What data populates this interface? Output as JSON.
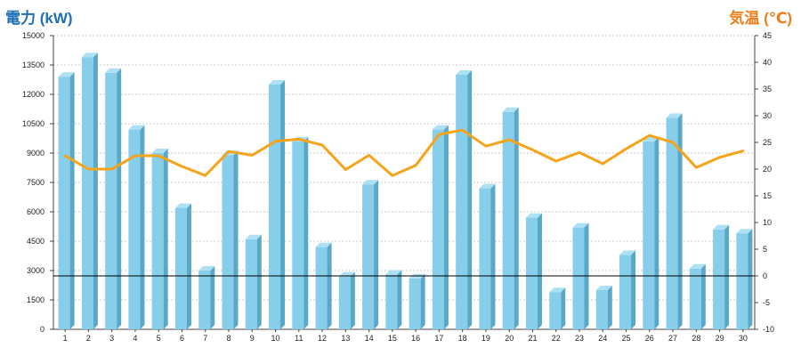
{
  "chart_data": {
    "type": "bar+line",
    "left_axis_label": "電力 (kW)",
    "right_axis_label": "気温 (℃)",
    "left_ylim": [
      0,
      15000
    ],
    "left_ticks": [
      "0",
      "1500",
      "3000",
      "4500",
      "6000",
      "7500",
      "9000",
      "10500",
      "12000",
      "13500",
      "15000"
    ],
    "right_ylim": [
      -10,
      45
    ],
    "right_ticks": [
      "-10",
      "-5",
      "0",
      "5",
      "10",
      "15",
      "20",
      "25",
      "30",
      "35",
      "40",
      "45"
    ],
    "categories": [
      "1",
      "2",
      "3",
      "4",
      "5",
      "6",
      "7",
      "8",
      "9",
      "10",
      "11",
      "12",
      "13",
      "14",
      "15",
      "16",
      "17",
      "18",
      "19",
      "20",
      "21",
      "22",
      "23",
      "24",
      "25",
      "26",
      "27",
      "28",
      "29",
      "30"
    ],
    "series": [
      {
        "type": "bar",
        "axis": "left",
        "values": [
          12900,
          13900,
          13100,
          10200,
          9000,
          6200,
          3000,
          8900,
          4600,
          12500,
          9600,
          4200,
          2700,
          7400,
          2800,
          2600,
          10200,
          13000,
          7200,
          11100,
          5700,
          1900,
          5200,
          2000,
          3800,
          9600,
          10800,
          3100,
          5100,
          4900
        ]
      },
      {
        "type": "line",
        "axis": "right",
        "values": [
          22.5,
          20,
          20,
          22.5,
          22.5,
          20.5,
          18.8,
          23.3,
          22.6,
          25.2,
          25.6,
          24.5,
          19.9,
          22.6,
          18.8,
          20.7,
          26.5,
          27.3,
          24.3,
          25.5,
          23.6,
          21.5,
          23.1,
          21,
          23.8,
          26.3,
          25,
          20.3,
          22.2,
          23.4
        ]
      }
    ],
    "grid": true,
    "reference_line_right": 0,
    "colors": {
      "bar_front": "#87ceea",
      "bar_side": "#5aa8c8",
      "bar_top": "#aee0f4",
      "line": "#f5a31a",
      "left_label": "#1f6fb5",
      "right_label": "#f07d1a"
    }
  }
}
